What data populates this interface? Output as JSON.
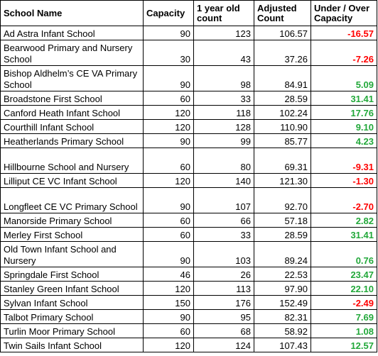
{
  "headers": {
    "school": "School Name",
    "capacity": "Capacity",
    "one_year_old_count": "1 year old count",
    "adjusted_count": "Adjusted Count",
    "under_over": "Under / Over Capacity"
  },
  "rows": [
    {
      "school": "Ad Astra Infant School",
      "capacity": "90",
      "count": "123",
      "adjusted": "106.57",
      "diff": "-16.57",
      "sign": "neg",
      "tall": false
    },
    {
      "school": "Bearwood Primary and Nursery School",
      "capacity": "30",
      "count": "43",
      "adjusted": "37.26",
      "diff": "-7.26",
      "sign": "neg",
      "tall": true
    },
    {
      "school": "Bishop Aldhelm’s CE VA Primary School",
      "capacity": "90",
      "count": "98",
      "adjusted": "84.91",
      "diff": "5.09",
      "sign": "pos",
      "tall": true
    },
    {
      "school": "Broadstone First School",
      "capacity": "60",
      "count": "33",
      "adjusted": "28.59",
      "diff": "31.41",
      "sign": "pos",
      "tall": false
    },
    {
      "school": "Canford Heath Infant School",
      "capacity": "120",
      "count": "118",
      "adjusted": "102.24",
      "diff": "17.76",
      "sign": "pos",
      "tall": false
    },
    {
      "school": "Courthill Infant School",
      "capacity": "120",
      "count": "128",
      "adjusted": "110.90",
      "diff": "9.10",
      "sign": "pos",
      "tall": false
    },
    {
      "school": "Heatherlands Primary School",
      "capacity": "90",
      "count": "99",
      "adjusted": "85.77",
      "diff": "4.23",
      "sign": "pos",
      "tall": false
    },
    {
      "school": "Hillbourne School and Nursery",
      "capacity": "60",
      "count": "80",
      "adjusted": "69.31",
      "diff": "-9.31",
      "sign": "neg",
      "tall": true
    },
    {
      "school": "Lilliput CE VC Infant School",
      "capacity": "120",
      "count": "140",
      "adjusted": "121.30",
      "diff": "-1.30",
      "sign": "neg",
      "tall": false
    },
    {
      "school": "Longfleet CE VC Primary School",
      "capacity": "90",
      "count": "107",
      "adjusted": "92.70",
      "diff": "-2.70",
      "sign": "neg",
      "tall": true
    },
    {
      "school": "Manorside Primary School",
      "capacity": "60",
      "count": "66",
      "adjusted": "57.18",
      "diff": "2.82",
      "sign": "pos",
      "tall": false
    },
    {
      "school": "Merley First School",
      "capacity": "60",
      "count": "33",
      "adjusted": "28.59",
      "diff": "31.41",
      "sign": "pos",
      "tall": false
    },
    {
      "school": "Old Town Infant School and Nursery",
      "capacity": "90",
      "count": "103",
      "adjusted": "89.24",
      "diff": "0.76",
      "sign": "pos",
      "tall": true
    },
    {
      "school": "Springdale First School",
      "capacity": "46",
      "count": "26",
      "adjusted": "22.53",
      "diff": "23.47",
      "sign": "pos",
      "tall": false
    },
    {
      "school": "Stanley Green Infant School",
      "capacity": "120",
      "count": "113",
      "adjusted": "97.90",
      "diff": "22.10",
      "sign": "pos",
      "tall": false
    },
    {
      "school": "Sylvan Infant School",
      "capacity": "150",
      "count": "176",
      "adjusted": "152.49",
      "diff": "-2.49",
      "sign": "neg",
      "tall": false
    },
    {
      "school": "Talbot Primary School",
      "capacity": "90",
      "count": "95",
      "adjusted": "82.31",
      "diff": "7.69",
      "sign": "pos",
      "tall": false
    },
    {
      "school": "Turlin Moor Primary School",
      "capacity": "60",
      "count": "68",
      "adjusted": "58.92",
      "diff": "1.08",
      "sign": "pos",
      "tall": false
    },
    {
      "school": "Twin Sails Infant School",
      "capacity": "120",
      "count": "124",
      "adjusted": "107.43",
      "diff": "12.57",
      "sign": "pos",
      "tall": false
    }
  ],
  "colors": {
    "negative": "#ff0000",
    "positive": "#22a83a"
  }
}
